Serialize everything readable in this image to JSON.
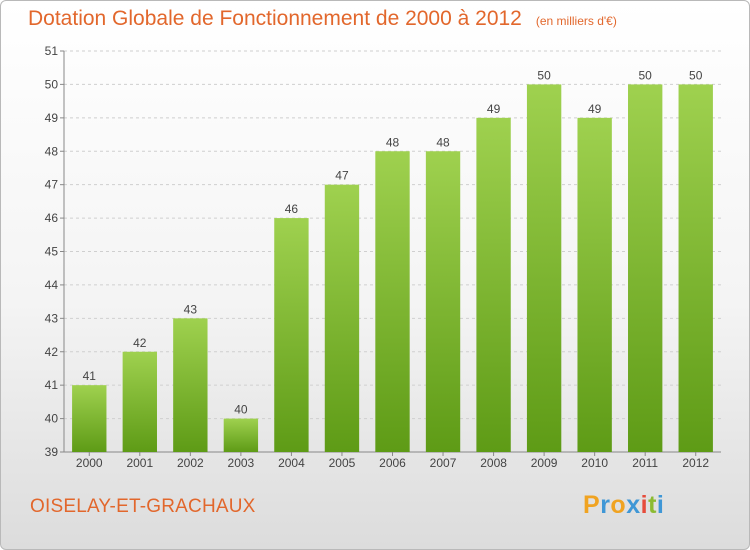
{
  "header": {
    "title": "Dotation Globale de Fonctionnement de 2000 à 2012",
    "unit": "(en milliers d'€)"
  },
  "footer": {
    "commune": "OISELAY-ET-GRACHAUX",
    "brand_letters": [
      "P",
      "r",
      "o",
      "x",
      "i",
      "t",
      "i"
    ]
  },
  "colors": {
    "title": "#e2672c",
    "bar_top": "#9fd14f",
    "bar_bottom": "#5e9b16",
    "grid": "#cfcfcf",
    "axis": "#888888"
  },
  "chart_data": {
    "type": "bar",
    "categories": [
      "2000",
      "2001",
      "2002",
      "2003",
      "2004",
      "2005",
      "2006",
      "2007",
      "2008",
      "2009",
      "2010",
      "2011",
      "2012"
    ],
    "values": [
      41,
      42,
      43,
      40,
      46,
      47,
      48,
      48,
      49,
      50,
      49,
      50,
      50
    ],
    "data_labels": [
      "41",
      "42",
      "43",
      "40",
      "46",
      "47",
      "48",
      "48",
      "49",
      "50",
      "49",
      "50",
      "50"
    ],
    "yticks": [
      39,
      40,
      41,
      42,
      43,
      44,
      45,
      46,
      47,
      48,
      49,
      50,
      51
    ],
    "ytick_labels": [
      "39",
      "40",
      "41",
      "42",
      "43",
      "44",
      "45",
      "46",
      "47",
      "48",
      "49",
      "50",
      "51"
    ],
    "ylim": [
      39,
      51
    ],
    "grid": true,
    "legend": "none"
  }
}
